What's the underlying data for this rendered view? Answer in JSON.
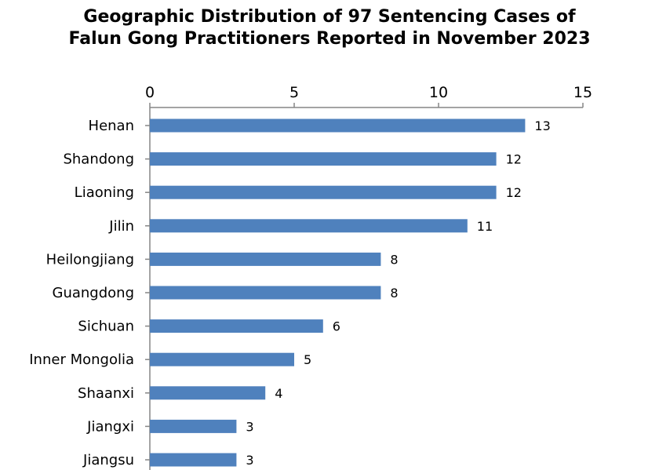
{
  "chart_data": {
    "type": "bar",
    "orientation": "horizontal",
    "title_lines": [
      "Geographic Distribution of 97 Sentencing Cases of",
      "Falun Gong Practitioners Reported in November 2023"
    ],
    "categories": [
      "Henan",
      "Shandong",
      "Liaoning",
      "Jilin",
      "Heilongjiang",
      "Guangdong",
      "Sichuan",
      "Inner Mongolia",
      "Shaanxi",
      "Jiangxi",
      "Jiangsu"
    ],
    "values": [
      13,
      12,
      12,
      11,
      8,
      8,
      6,
      5,
      4,
      3,
      3
    ],
    "xlim": [
      0,
      15
    ],
    "x_ticks": [
      0,
      5,
      10,
      15
    ],
    "x_axis_position": "top",
    "xlabel": "",
    "ylabel": "",
    "grid": false,
    "legend": "none",
    "data_labels": true,
    "bar_color": "#4F81BD",
    "axis_color": "#868686"
  }
}
